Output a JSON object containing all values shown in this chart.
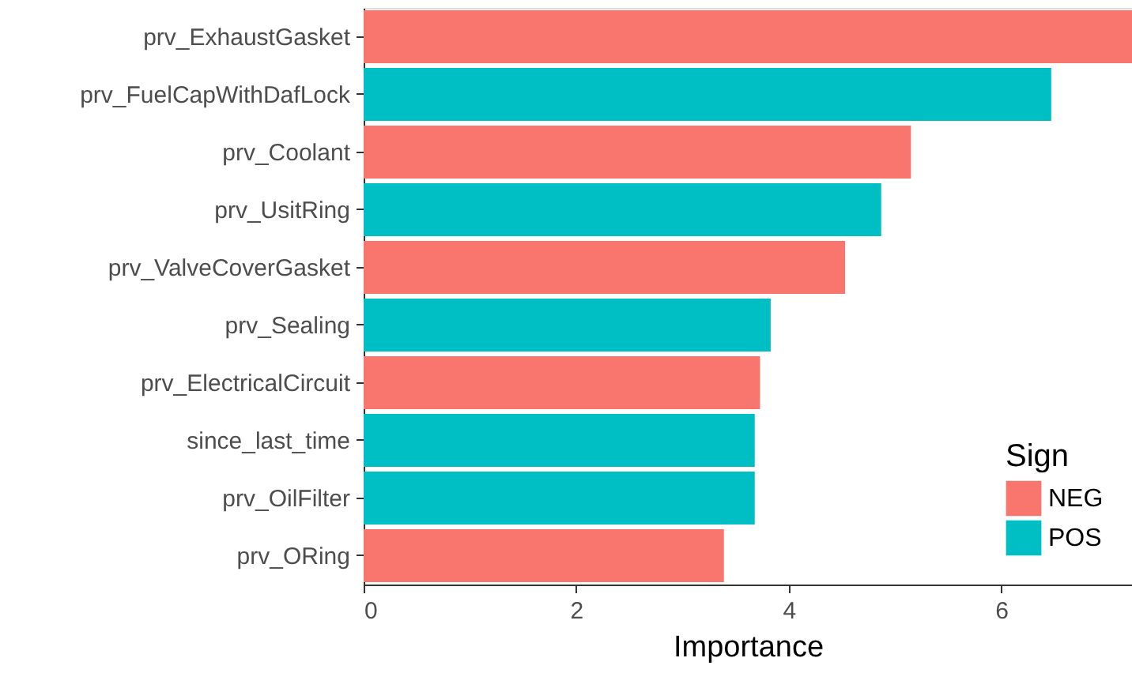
{
  "chart_data": {
    "type": "bar",
    "orientation": "horizontal",
    "xlabel": "Importance",
    "legend_title": "Sign",
    "legend": "bottom right",
    "grid": false,
    "categories": [
      "prv_ExhaustGasket",
      "prv_FuelCapWithDafLock",
      "prv_Coolant",
      "prv_UsitRing",
      "prv_ValveCoverGasket",
      "prv_Sealing",
      "prv_ElectricalCircuit",
      "since_last_time",
      "prv_OilFilter",
      "prv_ORing"
    ],
    "series": [
      {
        "name": "NEG",
        "color": "#f8766d",
        "values": [
          7.23,
          null,
          5.15,
          null,
          4.53,
          null,
          3.73,
          null,
          null,
          3.39
        ]
      },
      {
        "name": "POS",
        "color": "#00bfc4",
        "values": [
          null,
          6.47,
          null,
          4.87,
          null,
          3.83,
          null,
          3.68,
          3.68,
          null
        ]
      }
    ],
    "xlim": [
      0,
      7.23
    ],
    "xticks": [
      0,
      2,
      4,
      6
    ]
  }
}
